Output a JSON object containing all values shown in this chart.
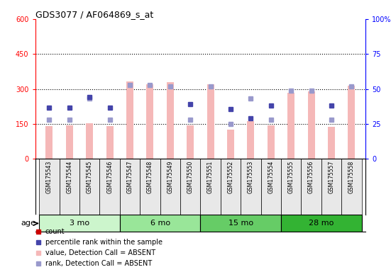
{
  "title": "GDS3077 / AF064869_s_at",
  "samples": [
    "GSM175543",
    "GSM175544",
    "GSM175545",
    "GSM175546",
    "GSM175547",
    "GSM175548",
    "GSM175549",
    "GSM175550",
    "GSM175551",
    "GSM175552",
    "GSM175553",
    "GSM175554",
    "GSM175555",
    "GSM175556",
    "GSM175557",
    "GSM175558"
  ],
  "bar_values": [
    140,
    145,
    152,
    140,
    332,
    320,
    330,
    145,
    320,
    125,
    162,
    145,
    285,
    290,
    138,
    315
  ],
  "blue_dot_values": [
    220,
    220,
    265,
    220,
    -1,
    -1,
    -1,
    235,
    -1,
    215,
    175,
    230,
    -1,
    -1,
    230,
    -1
  ],
  "pink_dot_pct": [
    28,
    28,
    43,
    28,
    53,
    53,
    52,
    28,
    52,
    25,
    43,
    28,
    49,
    49,
    28,
    52
  ],
  "blue_dot_flag": [
    1,
    1,
    1,
    1,
    0,
    0,
    0,
    1,
    0,
    1,
    1,
    1,
    0,
    0,
    1,
    0
  ],
  "age_groups": [
    {
      "label": "3 mo",
      "start": 0,
      "end": 4,
      "color": "#ccf5cc"
    },
    {
      "label": "6 mo",
      "start": 4,
      "end": 8,
      "color": "#99e699"
    },
    {
      "label": "15 mo",
      "start": 8,
      "end": 12,
      "color": "#66cc66"
    },
    {
      "label": "28 mo",
      "start": 12,
      "end": 16,
      "color": "#33b333"
    }
  ],
  "ylim_left": [
    0,
    600
  ],
  "ylim_right": [
    0,
    100
  ],
  "yticks_left": [
    0,
    150,
    300,
    450,
    600
  ],
  "yticks_right": [
    0,
    25,
    50,
    75,
    100
  ],
  "bar_color": "#f5b8b8",
  "bar_width": 0.35,
  "dot_color_blue": "#4444aa",
  "dot_color_lavender": "#9999cc",
  "count_color": "#cc0000",
  "bg_color": "#ffffff",
  "col_bg": "#e8e8e8",
  "plot_bg": "#ffffff"
}
